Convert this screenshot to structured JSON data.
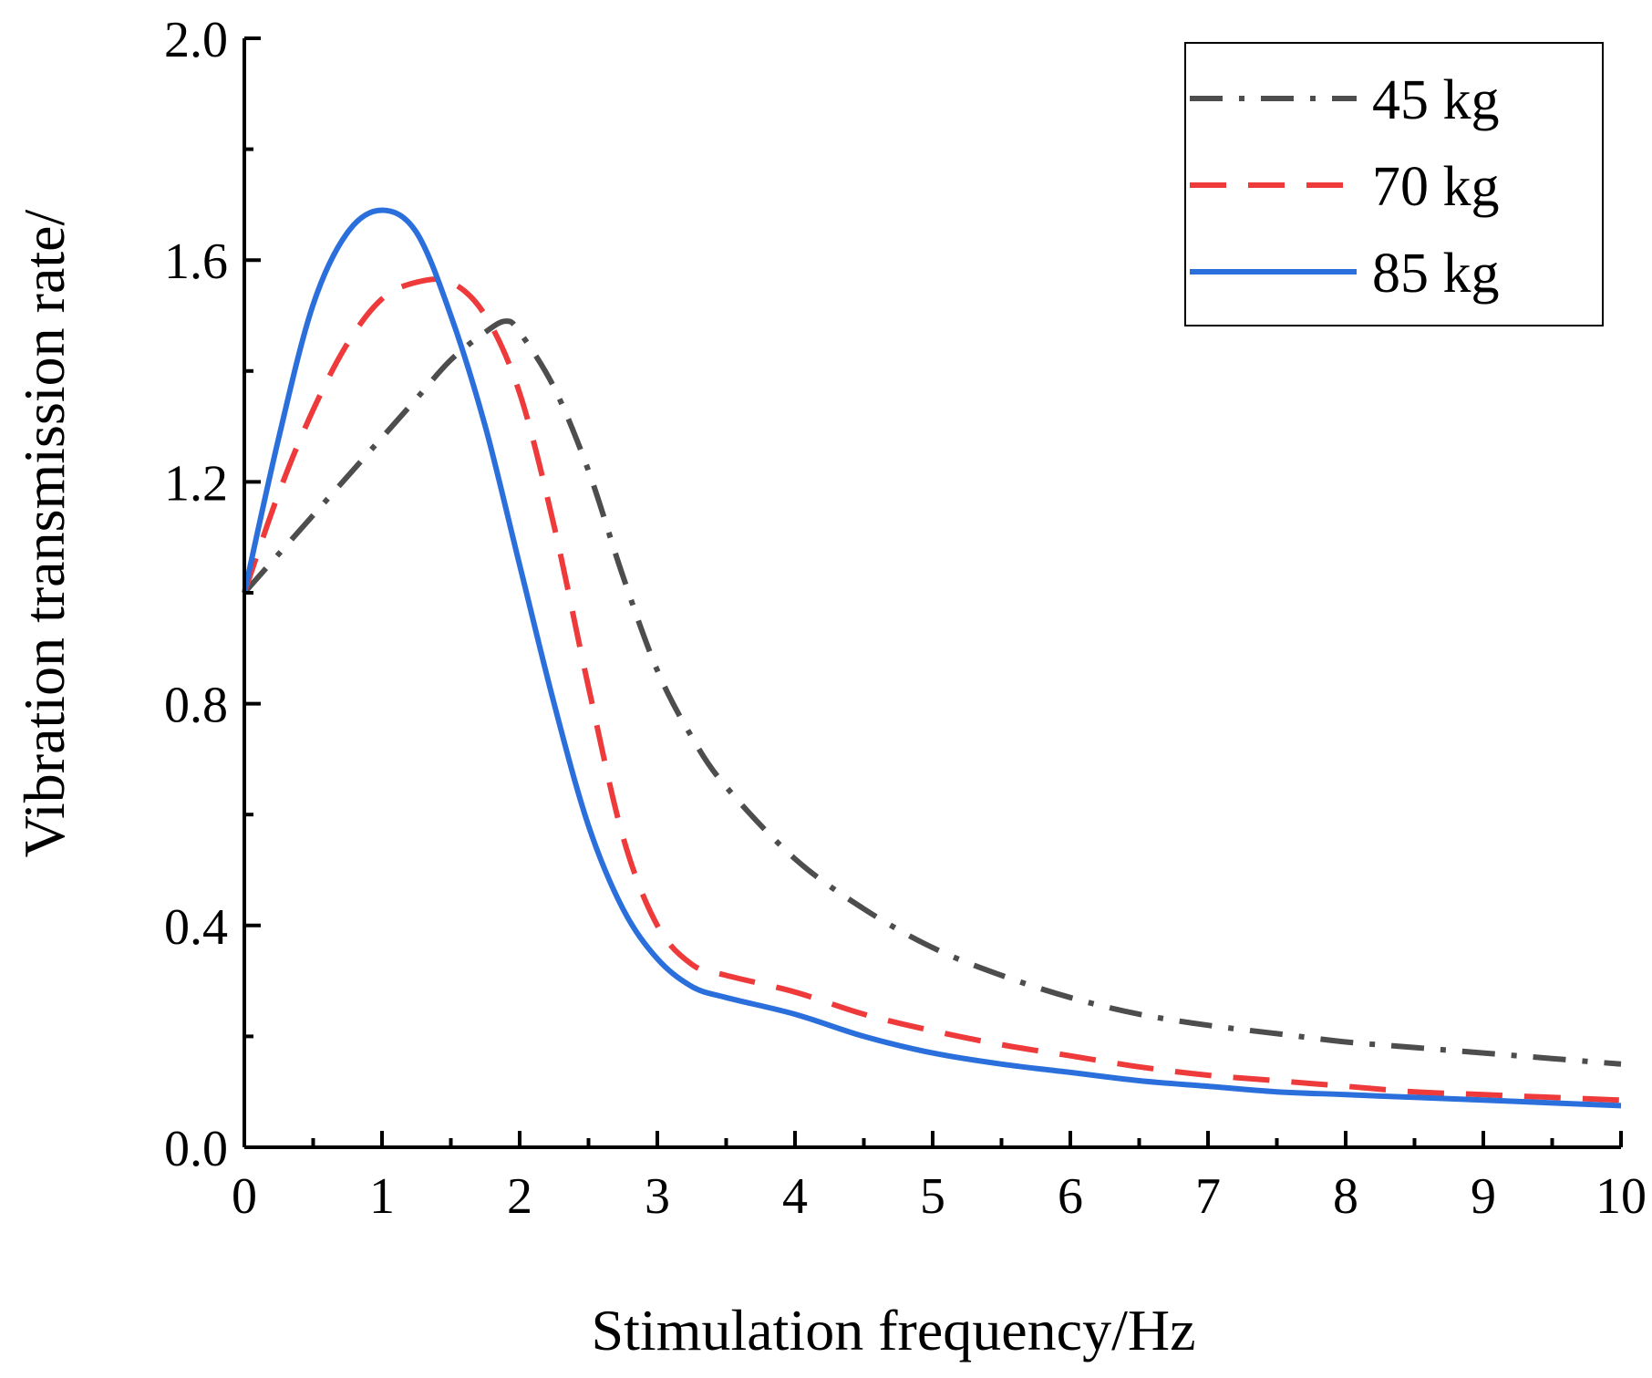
{
  "chart_data": {
    "type": "line",
    "title": "",
    "xlabel": "Stimulation frequency/Hz",
    "ylabel": "Vibration transmission rate/",
    "xlim": [
      0,
      10
    ],
    "ylim": [
      0,
      2.0
    ],
    "x_ticks": [
      0,
      1,
      2,
      3,
      4,
      5,
      6,
      7,
      8,
      9,
      10
    ],
    "x_tick_labels": [
      "0",
      "1",
      "2",
      "3",
      "4",
      "5",
      "6",
      "7",
      "8",
      "9",
      "10"
    ],
    "y_ticks": [
      0,
      0.4,
      0.8,
      1.2,
      1.6,
      2.0
    ],
    "y_tick_labels": [
      "0.0",
      "0.4",
      "0.8",
      "1.2",
      "1.6",
      "2.0"
    ],
    "grid": false,
    "legend_position": "top-right",
    "series": [
      {
        "name": "45 kg",
        "color": "#4d4d4d",
        "style": "dash-dot",
        "x": [
          0,
          0.25,
          0.5,
          0.75,
          1.0,
          1.25,
          1.5,
          1.75,
          1.9,
          2.0,
          2.25,
          2.5,
          2.75,
          3.0,
          3.25,
          3.5,
          4.0,
          4.5,
          5.0,
          5.5,
          6.0,
          6.5,
          7.0,
          7.5,
          8.0,
          8.5,
          9.0,
          9.5,
          10.0
        ],
        "y": [
          1.0,
          1.07,
          1.14,
          1.21,
          1.28,
          1.35,
          1.42,
          1.47,
          1.49,
          1.47,
          1.37,
          1.22,
          1.03,
          0.86,
          0.74,
          0.65,
          0.52,
          0.43,
          0.36,
          0.31,
          0.27,
          0.24,
          0.22,
          0.205,
          0.19,
          0.18,
          0.17,
          0.16,
          0.15
        ]
      },
      {
        "name": "70 kg",
        "color": "#ee3a3a",
        "style": "dashed",
        "x": [
          0,
          0.25,
          0.5,
          0.75,
          1.0,
          1.25,
          1.5,
          1.75,
          2.0,
          2.25,
          2.5,
          2.75,
          3.0,
          3.25,
          3.5,
          4.0,
          4.5,
          5.0,
          5.5,
          6.0,
          6.5,
          7.0,
          7.5,
          8.0,
          8.5,
          9.0,
          9.5,
          10.0
        ],
        "y": [
          1.0,
          1.18,
          1.33,
          1.45,
          1.53,
          1.56,
          1.56,
          1.5,
          1.36,
          1.12,
          0.83,
          0.56,
          0.4,
          0.33,
          0.31,
          0.28,
          0.24,
          0.21,
          0.185,
          0.165,
          0.145,
          0.13,
          0.12,
          0.11,
          0.1,
          0.095,
          0.09,
          0.085
        ]
      },
      {
        "name": "85 kg",
        "color": "#2a6fdb",
        "style": "solid",
        "x": [
          0,
          0.25,
          0.5,
          0.75,
          1.0,
          1.25,
          1.5,
          1.75,
          2.0,
          2.25,
          2.5,
          2.75,
          3.0,
          3.25,
          3.5,
          4.0,
          4.5,
          5.0,
          5.5,
          6.0,
          6.5,
          7.0,
          7.5,
          8.0,
          8.5,
          9.0,
          9.5,
          10.0
        ],
        "y": [
          1.0,
          1.28,
          1.52,
          1.65,
          1.69,
          1.65,
          1.5,
          1.3,
          1.05,
          0.8,
          0.58,
          0.43,
          0.34,
          0.29,
          0.27,
          0.24,
          0.2,
          0.17,
          0.15,
          0.135,
          0.12,
          0.11,
          0.1,
          0.095,
          0.09,
          0.085,
          0.08,
          0.075
        ]
      }
    ]
  }
}
